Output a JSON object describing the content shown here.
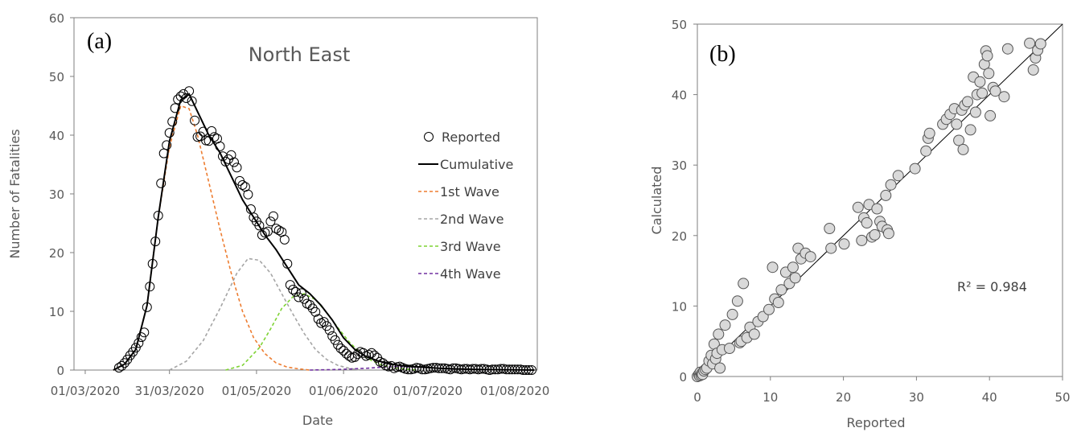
{
  "chart_data": [
    {
      "panel_label": "(a)",
      "type": "line",
      "title": "North East",
      "xlabel": "Date",
      "ylabel": "Number of Fatalities",
      "ylim": [
        0,
        60
      ],
      "y_ticks": [
        "0",
        "10",
        "20",
        "30",
        "40",
        "50",
        "60"
      ],
      "x_ticks": [
        "01/03/2020",
        "31/03/2020",
        "01/05/2020",
        "01/06/2020",
        "01/07/2020",
        "01/08/2020"
      ],
      "x_tick_days": [
        0,
        30,
        61,
        92,
        122,
        153
      ],
      "legend_position": "right",
      "series": [
        {
          "name": "Reported",
          "style": "open-circle",
          "color": "#000000",
          "x": [
            12,
            13,
            14,
            15,
            16,
            17,
            18,
            19,
            20,
            21,
            22,
            23,
            24,
            25,
            26,
            27,
            28,
            29,
            30,
            31,
            32,
            33,
            34,
            35,
            36,
            37,
            38,
            39,
            40,
            41,
            42,
            43,
            44,
            45,
            46,
            47,
            48,
            49,
            50,
            51,
            52,
            53,
            54,
            55,
            56,
            57,
            58,
            59,
            60,
            61,
            62,
            63,
            64,
            65,
            66,
            67,
            68,
            69,
            70,
            71,
            72,
            73,
            74,
            75,
            76,
            77,
            78,
            79,
            80,
            81,
            82,
            83,
            84,
            85,
            86,
            87,
            88,
            89,
            90,
            91,
            92,
            93,
            94,
            95,
            96,
            97,
            98,
            99,
            100,
            101,
            102,
            103,
            104,
            105,
            106,
            107,
            108,
            109,
            110,
            111,
            112,
            113,
            114,
            115,
            116,
            117,
            118,
            119,
            120,
            121,
            122,
            123,
            124,
            125,
            126,
            127,
            128,
            129,
            130,
            131,
            132,
            133,
            134,
            135,
            136,
            137,
            138,
            139,
            140,
            141,
            142,
            143,
            144,
            145,
            146,
            147,
            148,
            149,
            150,
            151,
            152,
            153,
            154,
            155,
            156,
            157,
            158,
            159
          ],
          "y": [
            0.4,
            0.7,
            1.2,
            1.8,
            2.5,
            3.1,
            3.8,
            4.6,
            5.6,
            6.4,
            10.7,
            14.2,
            18.1,
            21.9,
            26.3,
            31.8,
            36.9,
            38.3,
            40.4,
            42.3,
            44.6,
            46.1,
            46.6,
            47.0,
            46.3,
            47.5,
            45.8,
            42.5,
            39.7,
            39.8,
            40.6,
            39.1,
            39.0,
            40.7,
            39.7,
            39.4,
            38.1,
            36.4,
            35.5,
            35.9,
            36.6,
            35.4,
            34.5,
            32.2,
            31.5,
            31.2,
            29.9,
            27.4,
            26.0,
            25.3,
            24.6,
            23.0,
            23.4,
            23.6,
            25.3,
            26.2,
            24.1,
            23.8,
            23.5,
            22.2,
            18.1,
            14.5,
            13.7,
            13.3,
            12.4,
            13.1,
            12.1,
            11.3,
            11.1,
            10.5,
            9.9,
            8.7,
            8.0,
            8.2,
            7.5,
            6.8,
            5.8,
            5.1,
            4.3,
            3.7,
            3.3,
            2.8,
            2.4,
            2.1,
            2.2,
            2.7,
            3.1,
            2.9,
            2.4,
            2.6,
            2.9,
            2.5,
            2.1,
            1.4,
            1.2,
            0.8,
            0.6,
            0.7,
            0.3,
            0.5,
            0.6,
            0.4,
            0.2,
            0.1,
            0.1,
            0.2,
            0.4,
            0.3,
            0.1,
            0.1,
            0.2,
            0.3,
            0.4,
            0.4,
            0.3,
            0.3,
            0.3,
            0.2,
            0.1,
            0.3,
            0.3,
            0.2,
            0.1,
            0.2,
            0.2,
            0.1,
            0.2,
            0.2,
            0.1,
            0.2,
            0.2,
            0.1,
            0.0,
            0.1,
            0.1,
            0.1,
            0.2,
            0.2,
            0.1,
            0.1,
            0.1,
            0.1,
            0.1,
            0.1,
            0.0,
            0.0,
            0.0,
            0.0
          ]
        },
        {
          "name": "Cumulative",
          "style": "solid",
          "color": "#000000",
          "x": [
            10,
            14,
            18,
            22,
            26,
            30,
            34,
            37,
            40,
            44,
            48,
            52,
            56,
            60,
            64,
            68,
            72,
            76,
            80,
            84,
            88,
            92,
            96,
            100,
            104,
            108,
            112,
            116,
            120,
            126,
            132,
            140,
            150,
            160
          ],
          "y": [
            0,
            1.0,
            3.5,
            11,
            26,
            39,
            46,
            47,
            44,
            40,
            37,
            33,
            29,
            26,
            23,
            20.5,
            17.5,
            14.5,
            13,
            11,
            8.5,
            5.5,
            3.5,
            2.3,
            1.6,
            1.1,
            0.8,
            0.6,
            0.5,
            0.3,
            0.2,
            0.1,
            0.05,
            0.0
          ]
        },
        {
          "name": "1st Wave",
          "style": "dashed",
          "color": "#ED7D31",
          "x": [
            10,
            14,
            18,
            22,
            26,
            30,
            34,
            37,
            40,
            44,
            48,
            52,
            56,
            60,
            64,
            68,
            72,
            76,
            80
          ],
          "y": [
            0,
            1.0,
            3.5,
            11,
            26,
            38,
            45,
            44.5,
            40,
            32,
            24,
            16.5,
            10,
            5.5,
            2.8,
            1.2,
            0.5,
            0.2,
            0
          ]
        },
        {
          "name": "2nd Wave",
          "style": "dashed",
          "color": "#A5A5A5",
          "x": [
            30,
            36,
            42,
            48,
            54,
            58,
            62,
            66,
            70,
            74,
            78,
            82,
            86,
            90,
            94,
            98
          ],
          "y": [
            0,
            1.5,
            5,
            10.5,
            16.5,
            19,
            18.7,
            16.5,
            13,
            9.5,
            6.2,
            3.5,
            1.8,
            0.8,
            0.3,
            0
          ]
        },
        {
          "name": "3rd Wave",
          "style": "dashed",
          "color": "#7ED334",
          "x": [
            50,
            56,
            62,
            66,
            70,
            74,
            78,
            82,
            86,
            90,
            94,
            98,
            102,
            106,
            110,
            114,
            118
          ],
          "y": [
            0,
            0.8,
            3.8,
            7,
            10.5,
            12.5,
            13,
            12,
            9.8,
            7.2,
            4.8,
            2.9,
            1.6,
            0.8,
            0.4,
            0.2,
            0
          ]
        },
        {
          "name": "4th Wave",
          "style": "dashed",
          "color": "#7030A0",
          "x": [
            80,
            90,
            100,
            106,
            112,
            118,
            124,
            130,
            140,
            150,
            160
          ],
          "y": [
            0,
            0.1,
            0.3,
            0.5,
            0.6,
            0.5,
            0.4,
            0.2,
            0.1,
            0.05,
            0
          ]
        }
      ]
    },
    {
      "panel_label": "(b)",
      "type": "scatter",
      "xlabel": "Reported",
      "ylabel": "Calculated",
      "xlim": [
        0,
        50
      ],
      "ylim": [
        0,
        50
      ],
      "x_ticks": [
        "0",
        "10",
        "20",
        "30",
        "40",
        "50"
      ],
      "y_ticks": [
        "0",
        "10",
        "20",
        "30",
        "40",
        "50"
      ],
      "annotation": "R² = 0.984",
      "trendline": {
        "x": [
          0,
          50
        ],
        "y": [
          0,
          50
        ]
      },
      "series": [
        {
          "name": "",
          "color": "#D9D9D9",
          "edge": "#555555",
          "x": [
            0,
            0.2,
            0.3,
            0.4,
            0.5,
            0.6,
            0.7,
            0.9,
            1.1,
            1.3,
            1.6,
            1.9,
            2.1,
            2.3,
            2.5,
            2.7,
            2.9,
            3.1,
            3.4,
            3.8,
            4.4,
            4.8,
            5.5,
            5.8,
            6.0,
            6.3,
            6.8,
            7.2,
            7.8,
            8.3,
            9.0,
            9.8,
            10.3,
            10.6,
            11.1,
            11.5,
            12.1,
            12.6,
            13.1,
            13.4,
            13.8,
            14.2,
            14.8,
            15.5,
            18.1,
            18.3,
            20.1,
            22.0,
            22.5,
            22.8,
            23.2,
            23.5,
            23.9,
            24.3,
            24.6,
            25.0,
            25.3,
            25.8,
            26.0,
            26.2,
            26.5,
            27.5,
            29.8,
            31.3,
            31.6,
            31.8,
            33.6,
            34.1,
            34.6,
            35.2,
            35.5,
            35.8,
            36.2,
            36.4,
            36.6,
            37.0,
            37.4,
            37.8,
            38.1,
            38.3,
            38.7,
            39.0,
            39.3,
            39.5,
            39.7,
            39.9,
            40.1,
            40.5,
            40.8,
            42.0,
            42.5,
            45.5,
            46.0,
            46.3,
            46.6,
            47.0
          ],
          "y": [
            0,
            0.3,
            0.1,
            0.6,
            0.2,
            0.4,
            0.3,
            0.8,
            1.0,
            1.2,
            2.2,
            3.0,
            1.8,
            4.6,
            2.5,
            3.3,
            6.0,
            1.2,
            3.8,
            7.3,
            4.0,
            8.8,
            10.7,
            4.8,
            5.0,
            13.2,
            5.5,
            7.0,
            6.0,
            7.8,
            8.5,
            9.5,
            15.5,
            11.0,
            10.5,
            12.3,
            14.8,
            13.2,
            15.5,
            14.0,
            18.2,
            16.7,
            17.5,
            17.0,
            21.0,
            18.2,
            18.8,
            24.0,
            19.3,
            22.5,
            21.8,
            24.4,
            19.8,
            20.1,
            23.8,
            22.0,
            21.3,
            25.7,
            20.8,
            20.3,
            27.2,
            28.5,
            29.5,
            32.0,
            33.8,
            34.5,
            35.8,
            36.5,
            37.2,
            38.0,
            35.8,
            33.5,
            37.8,
            32.2,
            38.5,
            39.0,
            35.0,
            42.5,
            37.5,
            40.0,
            41.8,
            40.2,
            44.3,
            46.2,
            45.5,
            43.0,
            37.0,
            41.0,
            40.5,
            39.7,
            46.5,
            47.3,
            43.5,
            45.2,
            46.3,
            47.2
          ]
        }
      ]
    }
  ]
}
